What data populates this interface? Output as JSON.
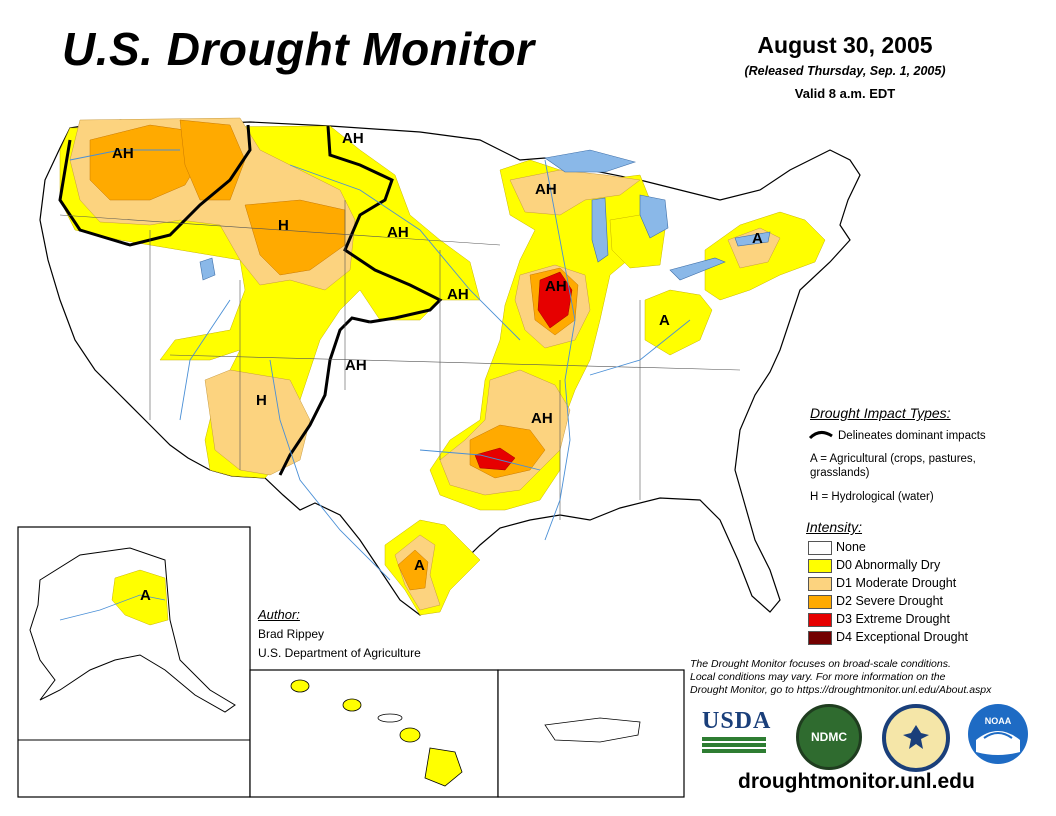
{
  "header": {
    "title": "U.S. Drought Monitor",
    "date": "August 30, 2005",
    "released": "(Released Thursday, Sep. 1, 2005)",
    "valid": "Valid 8 a.m. EDT"
  },
  "map_labels": {
    "ah_northwest": "AH",
    "ah_montana": "AH",
    "h_wyoming": "H",
    "ah_dakotas": "AH",
    "ah_nebraska": "AH",
    "ah_kansas": "AH",
    "h_southwest": "H",
    "ah_michigan": "AH",
    "ah_illinois": "AH",
    "ah_arkansas": "AH",
    "a_newyork": "A",
    "a_ohio": "A",
    "a_texas": "A",
    "a_alaska": "A"
  },
  "impact_types": {
    "heading": "Drought Impact Types:",
    "delineates": "Delineates dominant impacts",
    "agricultural_1": "A = Agricultural (crops, pastures,",
    "agricultural_2": "grasslands)",
    "hydrological": "H = Hydrological (water)"
  },
  "intensity": {
    "heading": "Intensity:",
    "levels": [
      {
        "label": "None",
        "color": "#ffffff"
      },
      {
        "label": "D0 Abnormally Dry",
        "color": "#ffff00"
      },
      {
        "label": "D1 Moderate Drought",
        "color": "#fcd37f"
      },
      {
        "label": "D2 Severe Drought",
        "color": "#ffaa00"
      },
      {
        "label": "D3 Extreme Drought",
        "color": "#e60000"
      },
      {
        "label": "D4 Exceptional Drought",
        "color": "#730000"
      }
    ]
  },
  "author": {
    "heading": "Author:",
    "name": "Brad Rippey",
    "org": "U.S. Department of Agriculture"
  },
  "note": {
    "line1": "The Drought Monitor focuses on broad-scale conditions.",
    "line2": "Local conditions may vary. For more information on the",
    "line3": "Drought Monitor, go to https://droughtmonitor.unl.edu/About.aspx"
  },
  "logos": {
    "usda": "USDA",
    "ndmc": "NDMC",
    "noaa": "NOAA"
  },
  "website": "droughtmonitor.unl.edu",
  "colors": {
    "d0": "#ffff00",
    "d1": "#fcd37f",
    "d2": "#ffaa00",
    "d3": "#e60000",
    "d4": "#730000",
    "water": "#6fa8dc"
  }
}
